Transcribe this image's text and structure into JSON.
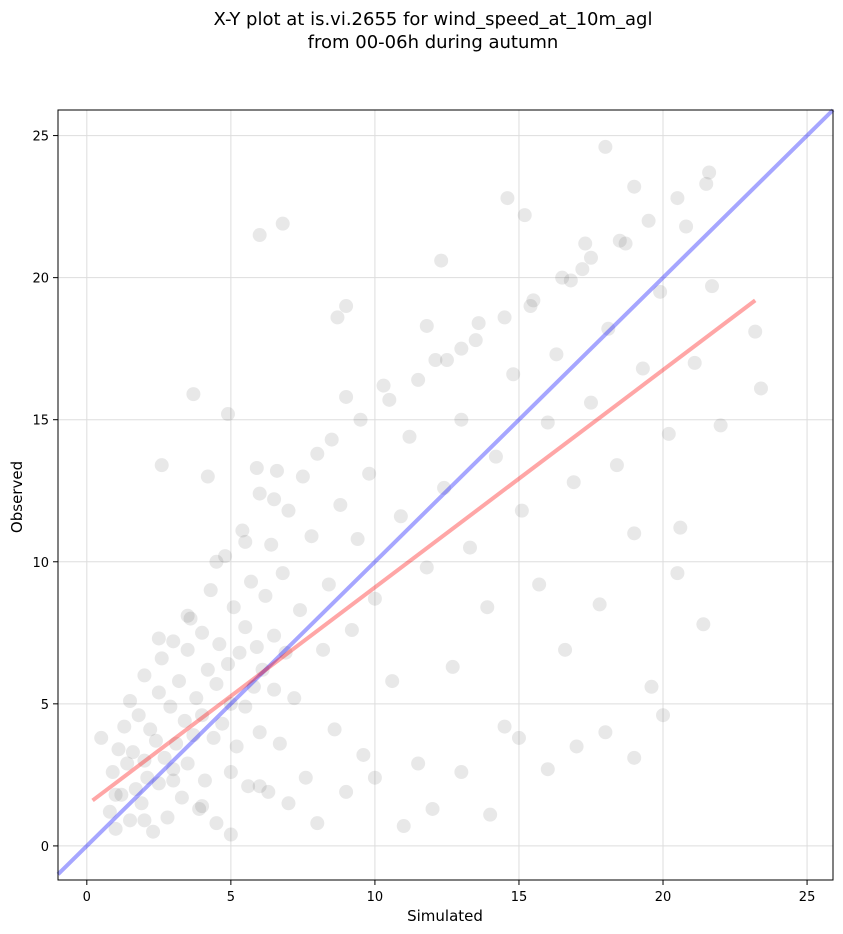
{
  "chart_data": {
    "type": "scatter",
    "title_line1": "X-Y plot at is.vi.2655 for wind_speed_at_10m_agl",
    "title_line2": "from 00-06h during autumn",
    "xlabel": "Simulated",
    "ylabel": "Observed",
    "xlim": [
      -1.0,
      25.9
    ],
    "ylim": [
      -1.2,
      25.9
    ],
    "xticks": [
      0,
      5,
      10,
      15,
      20,
      25
    ],
    "yticks": [
      0,
      5,
      10,
      15,
      20,
      25
    ],
    "grid": true,
    "colors": {
      "points": "#000000",
      "identity_line": "#0000ff",
      "fit_line": "#ff0000"
    },
    "point_alpha": 0.09,
    "identity_line": {
      "x": [
        -1.0,
        25.9
      ],
      "y": [
        -1.0,
        25.9
      ]
    },
    "fit_line": {
      "x": [
        0.2,
        23.2
      ],
      "y": [
        1.6,
        19.2
      ]
    },
    "generated_cloud_note": "",
    "points_x": [
      0.5,
      0.8,
      0.9,
      1.0,
      1.1,
      1.2,
      1.3,
      1.4,
      1.5,
      1.5,
      1.6,
      1.7,
      1.8,
      1.9,
      2.0,
      2.0,
      2.1,
      2.2,
      2.3,
      2.4,
      2.5,
      2.5,
      2.6,
      2.7,
      2.8,
      2.9,
      3.0,
      3.0,
      3.1,
      3.2,
      3.3,
      3.4,
      3.5,
      3.5,
      3.6,
      3.7,
      3.8,
      3.9,
      4.0,
      4.0,
      4.1,
      4.2,
      4.3,
      4.4,
      4.5,
      4.5,
      4.6,
      4.7,
      4.8,
      4.9,
      5.0,
      5.0,
      5.1,
      5.2,
      5.3,
      5.4,
      5.5,
      5.5,
      5.6,
      5.7,
      5.8,
      5.9,
      6.0,
      6.0,
      6.1,
      6.2,
      6.3,
      6.4,
      6.5,
      6.5,
      6.6,
      6.7,
      6.8,
      6.9,
      7.0,
      7.2,
      7.4,
      7.6,
      7.8,
      8.0,
      8.2,
      8.4,
      8.6,
      8.8,
      9.0,
      9.2,
      9.4,
      9.6,
      9.8,
      10.0,
      10.3,
      10.6,
      10.9,
      11.2,
      11.5,
      11.8,
      12.1,
      12.4,
      12.7,
      13.0,
      13.3,
      13.6,
      13.9,
      14.2,
      14.5,
      14.8,
      15.1,
      15.4,
      15.7,
      16.0,
      16.3,
      16.6,
      16.9,
      17.2,
      17.5,
      17.8,
      18.1,
      18.4,
      18.7,
      19.0,
      19.3,
      19.6,
      19.9,
      20.2,
      20.5,
      20.8,
      21.1,
      21.4,
      21.7,
      22.0,
      23.2,
      23.4,
      1.0,
      2.0,
      3.0,
      4.0,
      5.0,
      6.0,
      7.0,
      8.0,
      9.0,
      10.0,
      11.0,
      12.0,
      13.0,
      14.0,
      15.0,
      16.0,
      17.0,
      18.0,
      19.0,
      20.0,
      2.5,
      3.5,
      4.5,
      5.5,
      6.5,
      7.5,
      8.5,
      9.5,
      10.5,
      11.5,
      12.5,
      13.5,
      14.5,
      15.5,
      16.5,
      17.5,
      18.5,
      19.5,
      20.5,
      21.5,
      6.0,
      6.8,
      3.7,
      2.6,
      4.9,
      18.0,
      21.6,
      15.2,
      14.6,
      12.3,
      9.0,
      8.7,
      5.9,
      4.2,
      13.0,
      11.8,
      16.8,
      17.3,
      19.0,
      20.6
    ],
    "points_y": [
      3.8,
      1.2,
      2.6,
      0.6,
      3.4,
      1.8,
      4.2,
      2.9,
      0.9,
      5.1,
      3.3,
      2.0,
      4.6,
      1.5,
      3.0,
      6.0,
      2.4,
      4.1,
      0.5,
      3.7,
      5.4,
      2.2,
      6.6,
      3.1,
      1.0,
      4.9,
      2.7,
      7.2,
      3.6,
      5.8,
      1.7,
      4.4,
      6.9,
      2.9,
      8.0,
      3.9,
      5.2,
      1.3,
      7.5,
      4.6,
      2.3,
      6.2,
      9.0,
      3.8,
      5.7,
      0.8,
      7.1,
      4.3,
      10.2,
      6.4,
      2.6,
      5.0,
      8.4,
      3.5,
      6.8,
      11.1,
      4.9,
      7.7,
      2.1,
      9.3,
      5.6,
      7.0,
      12.4,
      4.0,
      6.2,
      8.8,
      1.9,
      10.6,
      5.5,
      7.4,
      13.2,
      3.6,
      9.6,
      6.8,
      11.8,
      5.2,
      8.3,
      2.4,
      10.9,
      13.8,
      6.9,
      9.2,
      4.1,
      12.0,
      15.8,
      7.6,
      10.8,
      3.2,
      13.1,
      8.7,
      16.2,
      5.8,
      11.6,
      14.4,
      2.9,
      9.8,
      17.1,
      12.6,
      6.3,
      15.0,
      10.5,
      18.4,
      8.4,
      13.7,
      4.2,
      16.6,
      11.8,
      19.0,
      9.2,
      14.9,
      17.3,
      6.9,
      12.8,
      20.3,
      15.6,
      8.5,
      18.2,
      13.4,
      21.2,
      11.0,
      16.8,
      5.6,
      19.5,
      14.5,
      9.6,
      21.8,
      17.0,
      7.8,
      19.7,
      14.8,
      18.1,
      16.1,
      1.8,
      0.9,
      2.3,
      1.4,
      0.4,
      2.1,
      1.5,
      0.8,
      1.9,
      2.4,
      0.7,
      1.3,
      2.6,
      1.1,
      3.8,
      2.7,
      3.5,
      4.0,
      3.1,
      4.6,
      7.3,
      8.1,
      10.0,
      10.7,
      12.2,
      13.0,
      14.3,
      15.0,
      15.7,
      16.4,
      17.1,
      17.8,
      18.6,
      19.2,
      20.0,
      20.7,
      21.3,
      22.0,
      22.8,
      23.3,
      21.5,
      21.9,
      15.9,
      13.4,
      15.2,
      24.6,
      23.7,
      22.2,
      22.8,
      20.6,
      19.0,
      18.6,
      13.3,
      13.0,
      17.5,
      18.3,
      19.9,
      21.2,
      23.2,
      11.2
    ]
  }
}
